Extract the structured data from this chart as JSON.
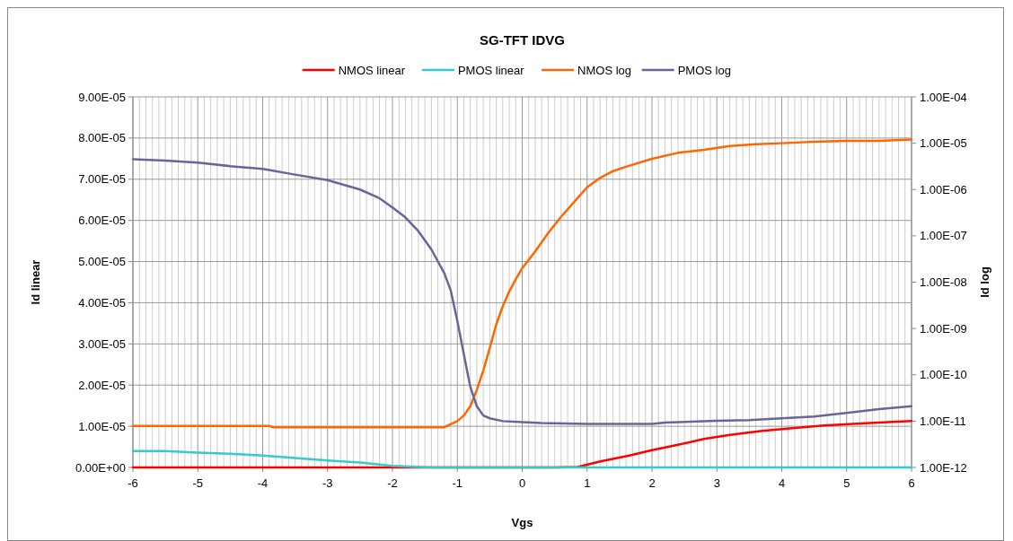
{
  "chart_data": {
    "type": "line",
    "title": "SG-TFT IDVG",
    "xlabel": "Vgs",
    "ylabel": "Id linear",
    "y2label": "Id log",
    "xlim": [
      -6,
      6
    ],
    "xticks": [
      -6,
      {
        "value": -5.9,
        "label": null
      },
      {
        "value": -5.8,
        "label": null
      },
      {
        "value": -5.7,
        "label": null
      },
      {
        "value": -5.6,
        "label": null
      },
      {
        "value": -5.5,
        "label": null
      },
      {
        "value": -5.4,
        "label": null
      },
      {
        "value": -5.3,
        "label": null
      },
      {
        "value": -5.2,
        "label": null
      },
      {
        "value": -5.1,
        "label": null
      },
      -5,
      {
        "value": -4.9,
        "label": null
      },
      {
        "value": -4.8,
        "label": null
      },
      {
        "value": -4.7,
        "label": null
      },
      {
        "value": -4.6,
        "label": null
      },
      {
        "value": -4.5,
        "label": null
      },
      {
        "value": -4.4,
        "label": null
      },
      {
        "value": -4.3,
        "label": null
      },
      {
        "value": -4.2,
        "label": null
      },
      {
        "value": -4.1,
        "label": null
      },
      -4,
      {
        "value": -3.9,
        "label": null
      },
      {
        "value": -3.8,
        "label": null
      },
      {
        "value": -3.7,
        "label": null
      },
      {
        "value": -3.6,
        "label": null
      },
      {
        "value": -3.5,
        "label": null
      },
      {
        "value": -3.4,
        "label": null
      },
      {
        "value": -3.3,
        "label": null
      },
      {
        "value": -3.2,
        "label": null
      },
      {
        "value": -3.1,
        "label": null
      },
      -3,
      {
        "value": -2.9,
        "label": null
      },
      {
        "value": -2.8,
        "label": null
      },
      {
        "value": -2.7,
        "label": null
      },
      {
        "value": -2.6,
        "label": null
      },
      {
        "value": -2.5,
        "label": null
      },
      {
        "value": -2.4,
        "label": null
      },
      {
        "value": -2.3,
        "label": null
      },
      {
        "value": -2.2,
        "label": null
      },
      {
        "value": -2.1,
        "label": null
      },
      -2,
      {
        "value": -1.9,
        "label": null
      },
      {
        "value": -1.8,
        "label": null
      },
      {
        "value": -1.7,
        "label": null
      },
      {
        "value": -1.6,
        "label": null
      },
      {
        "value": -1.5,
        "label": null
      },
      {
        "value": -1.4,
        "label": null
      },
      {
        "value": -1.3,
        "label": null
      },
      {
        "value": -1.2,
        "label": null
      },
      {
        "value": -1.1,
        "label": null
      },
      -1,
      {
        "value": -0.9,
        "label": null
      },
      {
        "value": -0.8,
        "label": null
      },
      {
        "value": -0.7,
        "label": null
      },
      {
        "value": -0.6,
        "label": null
      },
      {
        "value": -0.5,
        "label": null
      },
      {
        "value": -0.4,
        "label": null
      },
      {
        "value": -0.3,
        "label": null
      },
      {
        "value": -0.2,
        "label": null
      },
      {
        "value": -0.1,
        "label": null
      },
      0,
      {
        "value": 0.1,
        "label": null
      },
      {
        "value": 0.2,
        "label": null
      },
      {
        "value": 0.3,
        "label": null
      },
      {
        "value": 0.4,
        "label": null
      },
      {
        "value": 0.5,
        "label": null
      },
      {
        "value": 0.6,
        "label": null
      },
      {
        "value": 0.7,
        "label": null
      },
      {
        "value": 0.8,
        "label": null
      },
      {
        "value": 0.9,
        "label": null
      },
      1,
      {
        "value": 1.1,
        "label": null
      },
      {
        "value": 1.2,
        "label": null
      },
      {
        "value": 1.3,
        "label": null
      },
      {
        "value": 1.4,
        "label": null
      },
      {
        "value": 1.5,
        "label": null
      },
      {
        "value": 1.6,
        "label": null
      },
      {
        "value": 1.7,
        "label": null
      },
      {
        "value": 1.8,
        "label": null
      },
      {
        "value": 1.9,
        "label": null
      },
      2,
      {
        "value": 2.1,
        "label": null
      },
      {
        "value": 2.2,
        "label": null
      },
      {
        "value": 2.3,
        "label": null
      },
      {
        "value": 2.4,
        "label": null
      },
      {
        "value": 2.5,
        "label": null
      },
      {
        "value": 2.6,
        "label": null
      },
      {
        "value": 2.7,
        "label": null
      },
      {
        "value": 2.8,
        "label": null
      },
      {
        "value": 2.9,
        "label": null
      },
      3,
      {
        "value": 3.1,
        "label": null
      },
      {
        "value": 3.2,
        "label": null
      },
      {
        "value": 3.3,
        "label": null
      },
      {
        "value": 3.4,
        "label": null
      },
      {
        "value": 3.5,
        "label": null
      },
      {
        "value": 3.6,
        "label": null
      },
      {
        "value": 3.7,
        "label": null
      },
      {
        "value": 3.8,
        "label": null
      },
      {
        "value": 3.9,
        "label": null
      },
      4,
      {
        "value": 4.1,
        "label": null
      },
      {
        "value": 4.2,
        "label": null
      },
      {
        "value": 4.3,
        "label": null
      },
      {
        "value": 4.4,
        "label": null
      },
      {
        "value": 4.5,
        "label": null
      },
      {
        "value": 4.6,
        "label": null
      },
      {
        "value": 4.7,
        "label": null
      },
      {
        "value": 4.8,
        "label": null
      },
      {
        "value": 4.9,
        "label": null
      },
      5,
      {
        "value": 5.1,
        "label": null
      },
      {
        "value": 5.2,
        "label": null
      },
      {
        "value": 5.3,
        "label": null
      },
      {
        "value": 5.4,
        "label": null
      },
      {
        "value": 5.5,
        "label": null
      },
      {
        "value": 5.6,
        "label": null
      },
      {
        "value": 5.7,
        "label": null
      },
      {
        "value": 5.8,
        "label": null
      },
      {
        "value": 5.9,
        "label": null
      },
      6
    ],
    "ylim": [
      0,
      9e-05
    ],
    "yticks": [
      {
        "value": 0,
        "label": "0.00E+00"
      },
      {
        "value": 1e-05,
        "label": "1.00E-05"
      },
      {
        "value": 2e-05,
        "label": "2.00E-05"
      },
      {
        "value": 3e-05,
        "label": "3.00E-05"
      },
      {
        "value": 4e-05,
        "label": "4.00E-05"
      },
      {
        "value": 5e-05,
        "label": "5.00E-05"
      },
      {
        "value": 6e-05,
        "label": "6.00E-05"
      },
      {
        "value": 7e-05,
        "label": "7.00E-05"
      },
      {
        "value": 8e-05,
        "label": "8.00E-05"
      },
      {
        "value": 9e-05,
        "label": "9.00E-05"
      }
    ],
    "y2lim": [
      1e-12,
      0.0001
    ],
    "y2ticks": [
      {
        "value": 1e-12,
        "label": "1.00E-12"
      },
      {
        "value": 1e-11,
        "label": "1.00E-11"
      },
      {
        "value": 1e-10,
        "label": "1.00E-10"
      },
      {
        "value": 1e-09,
        "label": "1.00E-09"
      },
      {
        "value": 1e-08,
        "label": "1.00E-08"
      },
      {
        "value": 1e-07,
        "label": "1.00E-07"
      },
      {
        "value": 1e-06,
        "label": "1.00E-06"
      },
      {
        "value": 1e-05,
        "label": "1.00E-05"
      },
      {
        "value": 0.0001,
        "label": "1.00E-04"
      }
    ],
    "log": "y2",
    "grid": true,
    "legend": "top",
    "marker": "none",
    "line_style": "solid",
    "series": [
      {
        "name": "NMOS linear",
        "color": "#ff0000",
        "x": [
          -6,
          0.5,
          0.86,
          1.19,
          1.65,
          2,
          2.4,
          2.8,
          3.2,
          3.7,
          4.2,
          4.65,
          5.35,
          6
        ],
        "values": [
          0,
          0,
          1e-07,
          1.4e-06,
          2.9e-06,
          4.2e-06,
          5.5e-06,
          6.9e-06,
          7.9e-06,
          8.9e-06,
          9.6e-06,
          1.02e-05,
          1.08e-05,
          1.13e-05
        ]
      },
      {
        "name": "PMOS linear",
        "color": "#33cccc",
        "x": [
          -6,
          -5.5,
          -5,
          -4.5,
          -4,
          -3.5,
          -3,
          -2.5,
          -2,
          -1.6,
          -1.4,
          6
        ],
        "values": [
          4e-06,
          4e-06,
          3.6e-06,
          3.3e-06,
          2.9e-06,
          2.3e-06,
          1.7e-06,
          1.2e-06,
          4e-07,
          1e-07,
          0,
          0
        ]
      },
      {
        "name": "NMOS log",
        "color": "#ff6600",
        "axis": "y2",
        "x": [
          -6,
          -3.9,
          -3.85,
          -1.2,
          -1,
          -0.9,
          -0.8,
          -0.7,
          -0.6,
          -0.5,
          -0.4,
          -0.3,
          -0.2,
          -0.1,
          0,
          0.2,
          0.4,
          0.6,
          0.8,
          1,
          1.2,
          1.4,
          1.6,
          2,
          2.4,
          2.8,
          3.2,
          3.6,
          4,
          4.5,
          5,
          5.5,
          6
        ],
        "values": [
          7.9e-12,
          7.9e-12,
          7.4e-12,
          7.4e-12,
          1e-11,
          1.32e-11,
          2.1e-11,
          4.7e-11,
          1.23e-10,
          3.8e-10,
          1.23e-09,
          3e-09,
          6.3e-09,
          1.15e-08,
          2e-08,
          4.6e-08,
          1.15e-07,
          2.6e-07,
          5.4e-07,
          1.12e-06,
          1.78e-06,
          2.5e-06,
          3.1e-06,
          4.6e-06,
          6.2e-06,
          7.2e-06,
          8.7e-06,
          9.5e-06,
          1e-05,
          1.07e-05,
          1.12e-05,
          1.12e-05,
          1.2e-05
        ]
      },
      {
        "name": "PMOS log",
        "color": "#666699",
        "axis": "y2",
        "x": [
          -6,
          -5.5,
          -5,
          -4.5,
          -4,
          -3.5,
          -3,
          -2.5,
          -2.2,
          -2,
          -1.8,
          -1.6,
          -1.4,
          -1.2,
          -1.1,
          -1,
          -0.9,
          -0.8,
          -0.7,
          -0.6,
          -0.5,
          -0.3,
          0,
          0.3,
          1,
          2,
          2.2,
          3,
          3.5,
          4,
          4.5,
          5,
          5.5,
          6
        ],
        "values": [
          4.5e-06,
          4.2e-06,
          3.8e-06,
          3.2e-06,
          2.8e-06,
          2.1e-06,
          1.6e-06,
          1e-06,
          6.5e-07,
          4.1e-07,
          2.5e-07,
          1.26e-07,
          5.1e-08,
          1.55e-08,
          6.5e-09,
          1.45e-09,
          2.8e-10,
          5.5e-11,
          2.1e-11,
          1.32e-11,
          1.15e-11,
          1e-11,
          9.5e-12,
          9.1e-12,
          8.7e-12,
          8.7e-12,
          9.3e-12,
          1.02e-11,
          1.05e-11,
          1.15e-11,
          1.26e-11,
          1.51e-11,
          1.82e-11,
          2.1e-11
        ]
      }
    ]
  }
}
